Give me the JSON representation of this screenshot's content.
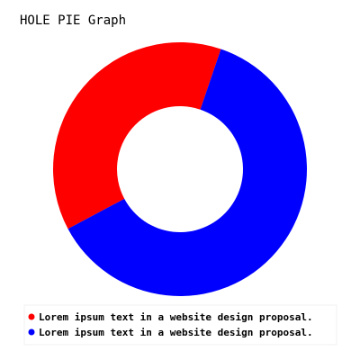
{
  "chart_data": {
    "type": "pie",
    "variant": "donut",
    "title": "HOLE PIE Graph",
    "slices": [
      {
        "label": "Lorem ipsum text in a website design proposal.",
        "value": 38,
        "color": "#ff0000"
      },
      {
        "label": "Lorem ipsum text in a website design proposal.",
        "value": 62,
        "color": "#0000ff"
      }
    ],
    "legend_position": "bottom"
  }
}
